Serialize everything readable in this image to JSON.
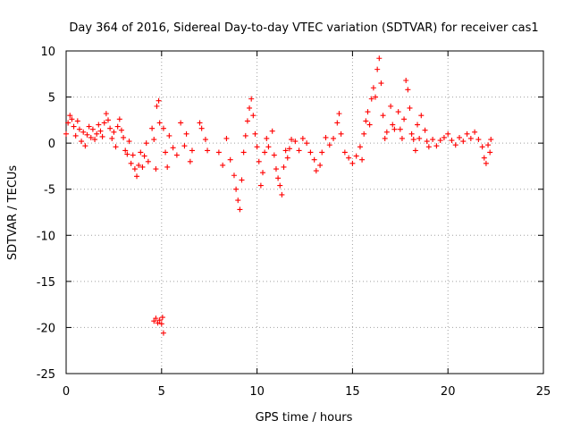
{
  "chart_data": {
    "type": "scatter",
    "title": "Day 364 of 2016, Sidereal Day-to-day VTEC variation (SDTVAR) for receiver cas1",
    "xlabel": "GPS time / hours",
    "ylabel": "SDTVAR / TECUs",
    "xlim": [
      0,
      25
    ],
    "ylim": [
      -25,
      10
    ],
    "xticks": [
      0,
      5,
      10,
      15,
      20,
      25
    ],
    "xtick_labels": [
      "0",
      "5",
      "10",
      "15",
      "20",
      "25"
    ],
    "yticks": [
      10,
      5,
      0,
      -5,
      -10,
      -15,
      -20,
      -25
    ],
    "ytick_labels": [
      "10",
      "5",
      "0",
      "-5",
      "-10",
      "-15",
      "-20",
      "-25"
    ],
    "grid": true,
    "marker": "+",
    "color": "#ff0000",
    "series": [
      {
        "name": "SDTVAR",
        "points": [
          [
            0.0,
            1.0
          ],
          [
            0.1,
            2.2
          ],
          [
            0.2,
            3.0
          ],
          [
            0.3,
            2.6
          ],
          [
            0.4,
            1.8
          ],
          [
            0.5,
            0.8
          ],
          [
            0.6,
            2.4
          ],
          [
            0.7,
            1.5
          ],
          [
            0.8,
            0.2
          ],
          [
            0.9,
            1.2
          ],
          [
            1.0,
            -0.3
          ],
          [
            1.1,
            0.9
          ],
          [
            1.2,
            1.8
          ],
          [
            1.3,
            0.6
          ],
          [
            1.4,
            1.5
          ],
          [
            1.5,
            0.4
          ],
          [
            1.6,
            1.0
          ],
          [
            1.7,
            2.0
          ],
          [
            1.8,
            1.3
          ],
          [
            1.9,
            0.7
          ],
          [
            2.0,
            2.2
          ],
          [
            2.1,
            3.2
          ],
          [
            2.2,
            2.5
          ],
          [
            2.3,
            1.6
          ],
          [
            2.4,
            0.5
          ],
          [
            2.5,
            1.2
          ],
          [
            2.6,
            -0.4
          ],
          [
            2.7,
            1.8
          ],
          [
            2.8,
            2.6
          ],
          [
            2.9,
            1.4
          ],
          [
            3.0,
            0.6
          ],
          [
            3.1,
            -0.8
          ],
          [
            3.2,
            -1.2
          ],
          [
            3.3,
            0.2
          ],
          [
            3.4,
            -2.2
          ],
          [
            3.5,
            -1.3
          ],
          [
            3.6,
            -2.8
          ],
          [
            3.7,
            -3.6
          ],
          [
            3.8,
            -2.4
          ],
          [
            3.9,
            -1.0
          ],
          [
            4.0,
            -2.6
          ],
          [
            4.1,
            -1.4
          ],
          [
            4.2,
            0.0
          ],
          [
            4.3,
            -2.0
          ],
          [
            4.5,
            1.6
          ],
          [
            4.6,
            0.4
          ],
          [
            4.7,
            -2.8
          ],
          [
            4.75,
            4.0
          ],
          [
            4.85,
            4.6
          ],
          [
            4.9,
            2.2
          ],
          [
            5.1,
            1.6
          ],
          [
            5.2,
            -1.0
          ],
          [
            5.3,
            -2.6
          ],
          [
            5.4,
            0.8
          ],
          [
            5.6,
            -0.5
          ],
          [
            5.8,
            -1.3
          ],
          [
            6.0,
            2.2
          ],
          [
            6.2,
            -0.3
          ],
          [
            6.3,
            1.0
          ],
          [
            6.5,
            -2.0
          ],
          [
            6.6,
            -0.8
          ],
          [
            7.0,
            2.2
          ],
          [
            7.1,
            1.6
          ],
          [
            7.3,
            0.4
          ],
          [
            7.4,
            -0.8
          ],
          [
            4.6,
            -19.3
          ],
          [
            4.7,
            -19.0
          ],
          [
            4.8,
            -19.5
          ],
          [
            4.9,
            -19.2
          ],
          [
            5.0,
            -19.6
          ],
          [
            5.05,
            -18.9
          ],
          [
            5.1,
            -20.6
          ],
          [
            8.0,
            -1.0
          ],
          [
            8.2,
            -2.4
          ],
          [
            8.4,
            0.5
          ],
          [
            8.6,
            -1.8
          ],
          [
            8.8,
            -3.5
          ],
          [
            8.9,
            -5.0
          ],
          [
            9.0,
            -6.2
          ],
          [
            9.1,
            -7.2
          ],
          [
            9.2,
            -4.0
          ],
          [
            9.3,
            -1.0
          ],
          [
            9.4,
            0.8
          ],
          [
            9.5,
            2.4
          ],
          [
            9.6,
            3.8
          ],
          [
            9.7,
            4.8
          ],
          [
            9.8,
            3.0
          ],
          [
            9.9,
            1.0
          ],
          [
            10.0,
            -0.4
          ],
          [
            10.1,
            -2.0
          ],
          [
            10.2,
            -4.6
          ],
          [
            10.3,
            -3.2
          ],
          [
            10.4,
            -1.0
          ],
          [
            10.5,
            0.5
          ],
          [
            10.6,
            -0.4
          ],
          [
            10.8,
            1.3
          ],
          [
            10.9,
            -1.3
          ],
          [
            11.0,
            -2.8
          ],
          [
            11.1,
            -3.8
          ],
          [
            11.2,
            -4.6
          ],
          [
            11.3,
            -5.6
          ],
          [
            11.4,
            -2.6
          ],
          [
            11.5,
            -0.8
          ],
          [
            11.6,
            -1.6
          ],
          [
            11.7,
            -0.6
          ],
          [
            11.8,
            0.4
          ],
          [
            12.0,
            0.2
          ],
          [
            12.2,
            -0.8
          ],
          [
            12.4,
            0.5
          ],
          [
            12.6,
            0.0
          ],
          [
            12.8,
            -1.0
          ],
          [
            13.0,
            -1.8
          ],
          [
            13.1,
            -3.0
          ],
          [
            13.3,
            -2.4
          ],
          [
            13.4,
            -1.0
          ],
          [
            13.6,
            0.6
          ],
          [
            13.8,
            -0.2
          ],
          [
            14.0,
            0.5
          ],
          [
            14.2,
            2.2
          ],
          [
            14.3,
            3.2
          ],
          [
            14.4,
            1.0
          ],
          [
            14.6,
            -1.0
          ],
          [
            14.8,
            -1.6
          ],
          [
            15.0,
            -2.2
          ],
          [
            15.2,
            -1.4
          ],
          [
            15.4,
            -0.4
          ],
          [
            15.5,
            -1.8
          ],
          [
            15.6,
            1.0
          ],
          [
            15.7,
            2.4
          ],
          [
            15.8,
            3.4
          ],
          [
            15.9,
            2.0
          ],
          [
            16.0,
            4.8
          ],
          [
            16.1,
            6.0
          ],
          [
            16.2,
            5.0
          ],
          [
            16.3,
            8.0
          ],
          [
            16.4,
            9.2
          ],
          [
            16.5,
            6.5
          ],
          [
            16.6,
            3.0
          ],
          [
            16.7,
            0.5
          ],
          [
            16.8,
            1.2
          ],
          [
            17.0,
            4.0
          ],
          [
            17.1,
            2.0
          ],
          [
            17.2,
            1.5
          ],
          [
            17.4,
            3.4
          ],
          [
            17.5,
            1.5
          ],
          [
            17.6,
            0.5
          ],
          [
            17.7,
            2.6
          ],
          [
            17.8,
            6.8
          ],
          [
            17.9,
            5.8
          ],
          [
            18.0,
            3.8
          ],
          [
            18.1,
            1.0
          ],
          [
            18.2,
            0.4
          ],
          [
            18.3,
            -0.8
          ],
          [
            18.4,
            2.0
          ],
          [
            18.5,
            0.5
          ],
          [
            18.6,
            3.0
          ],
          [
            18.8,
            1.4
          ],
          [
            18.9,
            0.2
          ],
          [
            19.0,
            -0.4
          ],
          [
            19.2,
            0.4
          ],
          [
            19.4,
            -0.3
          ],
          [
            19.6,
            0.3
          ],
          [
            19.8,
            0.6
          ],
          [
            20.0,
            1.0
          ],
          [
            20.2,
            0.3
          ],
          [
            20.4,
            -0.2
          ],
          [
            20.6,
            0.6
          ],
          [
            20.8,
            0.2
          ],
          [
            21.0,
            1.0
          ],
          [
            21.2,
            0.5
          ],
          [
            21.4,
            1.2
          ],
          [
            21.6,
            0.4
          ],
          [
            21.8,
            -0.4
          ],
          [
            21.9,
            -1.6
          ],
          [
            22.0,
            -2.2
          ],
          [
            22.1,
            -0.2
          ],
          [
            22.2,
            -1.0
          ],
          [
            22.25,
            0.4
          ]
        ]
      }
    ]
  }
}
